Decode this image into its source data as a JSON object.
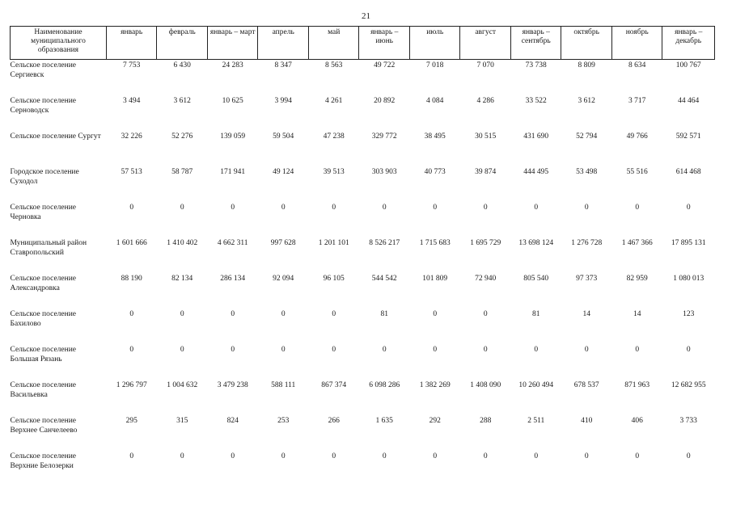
{
  "page_number": "21",
  "table": {
    "headers": [
      "Наименование муниципального образования",
      "январь",
      "февраль",
      "январь – март",
      "апрель",
      "май",
      "январь – июнь",
      "июль",
      "август",
      "январь – сентябрь",
      "октябрь",
      "ноябрь",
      "январь – декабрь"
    ],
    "rows": [
      [
        "Сельское поселение Сергиевск",
        "7 753",
        "6 430",
        "24 283",
        "8 347",
        "8 563",
        "49 722",
        "7 018",
        "7 070",
        "73 738",
        "8 809",
        "8 634",
        "100 767"
      ],
      [
        "Сельское поселение Серноводск",
        "3 494",
        "3 612",
        "10 625",
        "3 994",
        "4 261",
        "20 892",
        "4 084",
        "4 286",
        "33 522",
        "3 612",
        "3 717",
        "44 464"
      ],
      [
        "Сельское поселение Сургут",
        "32 226",
        "52 276",
        "139 059",
        "59 504",
        "47 238",
        "329 772",
        "38 495",
        "30 515",
        "431 690",
        "52 794",
        "49 766",
        "592 571"
      ],
      [
        "Городское поселение Суходол",
        "57 513",
        "58 787",
        "171 941",
        "49 124",
        "39 513",
        "303 903",
        "40 773",
        "39 874",
        "444 495",
        "53 498",
        "55 516",
        "614 468"
      ],
      [
        "Сельское поселение Черновка",
        "0",
        "0",
        "0",
        "0",
        "0",
        "0",
        "0",
        "0",
        "0",
        "0",
        "0",
        "0"
      ],
      [
        "Муниципальный район Ставропольский",
        "1 601 666",
        "1 410 402",
        "4 662 311",
        "997 628",
        "1 201 101",
        "8 526 217",
        "1 715 683",
        "1 695 729",
        "13 698 124",
        "1 276 728",
        "1 467 366",
        "17 895 131"
      ],
      [
        "Сельское поселение Александровка",
        "88 190",
        "82 134",
        "286 134",
        "92 094",
        "96 105",
        "544 542",
        "101 809",
        "72 940",
        "805 540",
        "97 373",
        "82 959",
        "1 080 013"
      ],
      [
        "Сельское поселение Бахилово",
        "0",
        "0",
        "0",
        "0",
        "0",
        "81",
        "0",
        "0",
        "81",
        "14",
        "14",
        "123"
      ],
      [
        "Сельское поселение Большая Рязань",
        "0",
        "0",
        "0",
        "0",
        "0",
        "0",
        "0",
        "0",
        "0",
        "0",
        "0",
        "0"
      ],
      [
        "Сельское поселение Васильевка",
        "1 296 797",
        "1 004 632",
        "3 479 238",
        "588 111",
        "867 374",
        "6 098 286",
        "1 382 269",
        "1 408 090",
        "10 260 494",
        "678 537",
        "871 963",
        "12 682 955"
      ],
      [
        "Сельское поселение Верхнее Санчелеево",
        "295",
        "315",
        "824",
        "253",
        "266",
        "1 635",
        "292",
        "288",
        "2 511",
        "410",
        "406",
        "3 733"
      ],
      [
        "Сельское поселение Верхние Белозерки",
        "0",
        "0",
        "0",
        "0",
        "0",
        "0",
        "0",
        "0",
        "0",
        "0",
        "0",
        "0"
      ]
    ]
  }
}
